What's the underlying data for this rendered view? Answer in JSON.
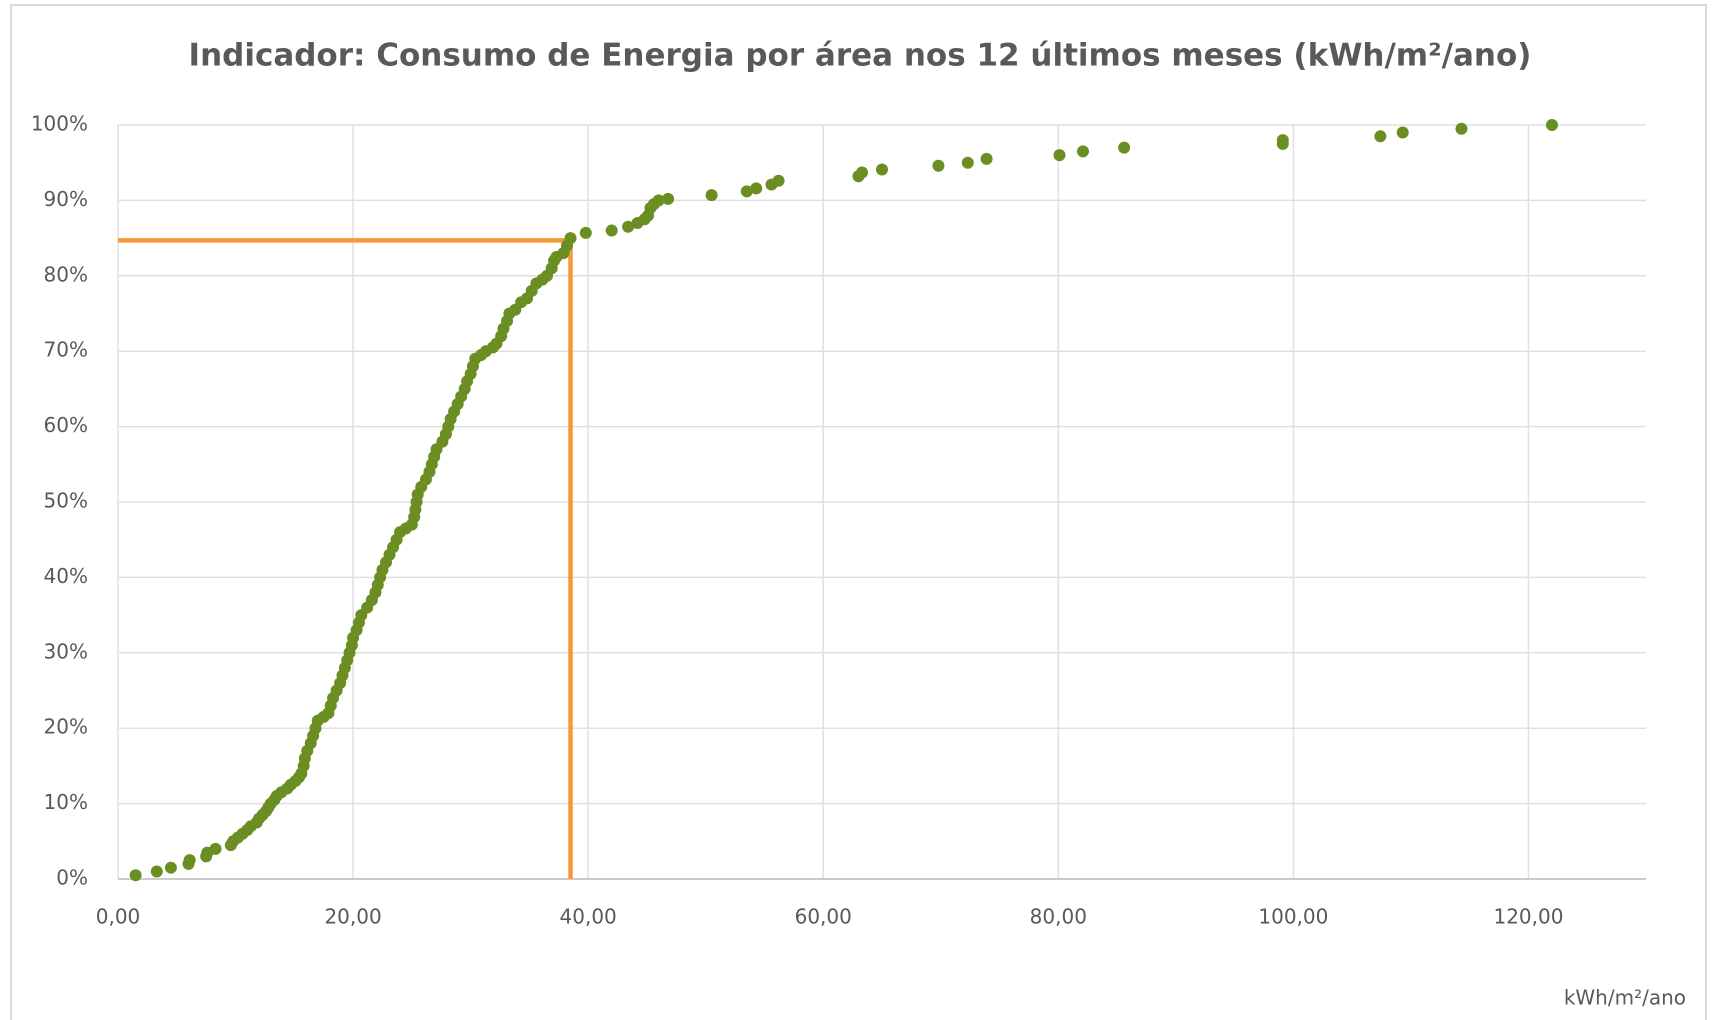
{
  "chart_data": {
    "type": "scatter",
    "title": "Indicador: Consumo de Energia por área nos 12 últimos meses (kWh/m²/ano)",
    "x_label": "kWh/m²/ano",
    "color": "#6b8e23",
    "grid": true,
    "xlim": [
      0,
      130
    ],
    "ylim": [
      0,
      100
    ],
    "xticks": [
      {
        "value": 0,
        "label": "0,00"
      },
      {
        "value": 20,
        "label": "20,00"
      },
      {
        "value": 40,
        "label": "40,00"
      },
      {
        "value": 60,
        "label": "60,00"
      },
      {
        "value": 80,
        "label": "80,00"
      },
      {
        "value": 100,
        "label": "100,00"
      },
      {
        "value": 120,
        "label": "120,00"
      }
    ],
    "yticks": [
      {
        "value": 0,
        "label": "0%"
      },
      {
        "value": 10,
        "label": "10%"
      },
      {
        "value": 20,
        "label": "20%"
      },
      {
        "value": 30,
        "label": "30%"
      },
      {
        "value": 40,
        "label": "40%"
      },
      {
        "value": 50,
        "label": "50%"
      },
      {
        "value": 60,
        "label": "60%"
      },
      {
        "value": 70,
        "label": "70%"
      },
      {
        "value": 80,
        "label": "80%"
      },
      {
        "value": 90,
        "label": "90%"
      },
      {
        "value": 100,
        "label": "100%"
      }
    ],
    "reference": {
      "x": 38.5,
      "y": 84.7,
      "color": "#f59a36"
    },
    "x": [
      1.5,
      3.3,
      4.5,
      6,
      6.1,
      7.5,
      7.6,
      8.3,
      9.6,
      9.8,
      10.2,
      10.6,
      11,
      11.3,
      11.8,
      12,
      12.3,
      12.6,
      12.8,
      13,
      13.3,
      13.5,
      13.9,
      14.4,
      14.7,
      15.1,
      15.4,
      15.6,
      15.8,
      15.9,
      16.1,
      16.4,
      16.6,
      16.8,
      17,
      17.5,
      17.9,
      18.1,
      18.3,
      18.6,
      18.9,
      19.1,
      19.3,
      19.5,
      19.7,
      19.9,
      20,
      20.3,
      20.5,
      20.7,
      21.2,
      21.6,
      21.9,
      22.1,
      22.3,
      22.5,
      22.8,
      23.1,
      23.4,
      23.7,
      24,
      24.5,
      25,
      25.2,
      25.3,
      25.4,
      25.5,
      25.8,
      26.2,
      26.5,
      26.7,
      26.9,
      27.1,
      27.6,
      27.9,
      28.1,
      28.3,
      28.6,
      28.9,
      29.2,
      29.5,
      29.7,
      30,
      30.2,
      30.4,
      30.9,
      31.3,
      31.9,
      32.2,
      32.6,
      32.8,
      33.1,
      33.3,
      33.8,
      34.3,
      34.8,
      35.2,
      35.6,
      36.1,
      36.5,
      36.9,
      37.1,
      37.3,
      37.9,
      38.2,
      38.5,
      39.8,
      42,
      43.4,
      44.2,
      44.8,
      45.1,
      45.3,
      45.6,
      46,
      46.8,
      50.5,
      53.5,
      54.3,
      55.6,
      56.2,
      63,
      63.3,
      65,
      69.8,
      72.3,
      73.9,
      80.1,
      82.1,
      85.6,
      99.1,
      99.1,
      107.4,
      109.3,
      114.3,
      122
    ],
    "values": [
      0.5,
      1,
      1.5,
      2,
      2.5,
      3,
      3.5,
      4,
      4.5,
      5,
      5.5,
      6,
      6.5,
      7,
      7.5,
      8,
      8.5,
      9,
      9.5,
      10,
      10.5,
      11,
      11.5,
      12,
      12.5,
      13,
      13.5,
      14,
      15,
      16,
      17,
      18,
      19,
      20,
      21,
      21.5,
      22,
      23,
      24,
      25,
      26,
      27,
      28,
      29,
      30,
      31,
      32,
      33,
      34,
      35,
      36,
      37,
      38,
      39,
      40,
      41,
      42,
      43,
      44,
      45,
      46,
      46.5,
      47,
      48,
      49,
      50,
      51,
      52,
      53,
      54,
      55,
      56,
      57,
      58,
      59,
      60,
      61,
      62,
      63,
      64,
      65,
      66,
      67,
      68,
      69,
      69.5,
      70,
      70.5,
      71,
      72,
      73,
      74,
      75,
      75.5,
      76.5,
      77,
      78,
      79,
      79.5,
      80,
      81,
      82,
      82.5,
      83,
      84,
      85,
      85.7,
      86,
      86.5,
      87,
      87.5,
      88,
      89,
      89.5,
      90,
      90.2,
      90.7,
      91.2,
      91.6,
      92.1,
      92.6,
      93.2,
      93.7,
      94.1,
      94.6,
      95,
      95.5,
      96,
      96.5,
      97,
      97.5,
      98,
      98.5,
      99,
      99.5,
      100
    ]
  }
}
